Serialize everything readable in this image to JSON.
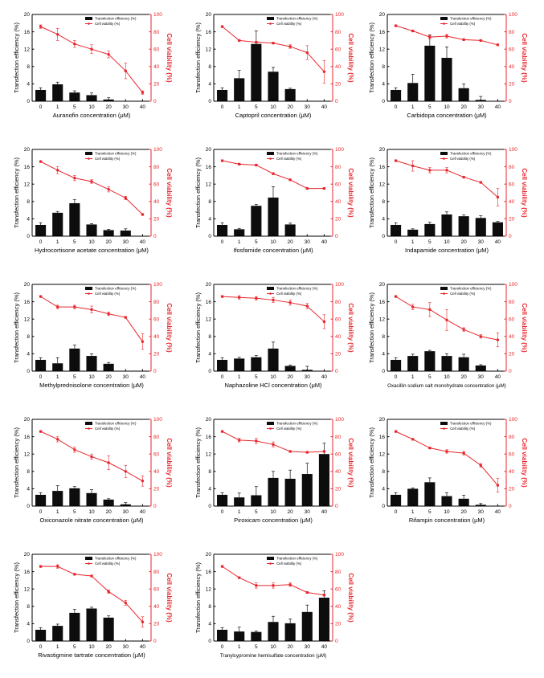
{
  "chart_data": {
    "type": "bar+line",
    "shared": {
      "categories": [
        "0",
        "1",
        "5",
        "10",
        "20",
        "30",
        "40"
      ],
      "left_ylabel": "Transfection efficiency (%)",
      "right_ylabel": "Cell viability (%)",
      "left_ylim": [
        0,
        20
      ],
      "left_ticks": [
        "0",
        "4",
        "8",
        "12",
        "16",
        "20"
      ],
      "right_ylim": [
        0,
        100
      ],
      "right_ticks": [
        "0",
        "20",
        "40",
        "60",
        "80",
        "100"
      ],
      "legend_bar": "Transfection efficiency (%)",
      "legend_line": "Cell viability (%)",
      "bar_color": "#0d0d0d",
      "line_color": "#e8262c"
    },
    "panels": [
      {
        "xlabel": "Auranofin concentration (μM)",
        "bars": [
          2.6,
          3.9,
          2.0,
          1.4,
          0.4,
          0,
          0
        ],
        "bar_err": [
          0.5,
          0.5,
          0.4,
          0.5,
          0.4,
          0,
          0
        ],
        "viability": [
          86,
          77,
          66,
          60,
          54,
          35,
          10
        ],
        "viability_err": [
          2,
          7,
          4,
          5,
          4,
          9,
          2
        ]
      },
      {
        "xlabel": "Captopril concentration (μM)",
        "bars": [
          2.6,
          5.3,
          13.2,
          6.8,
          2.8,
          0,
          0
        ],
        "bar_err": [
          0.5,
          1.8,
          3.0,
          1.0,
          0.2,
          0,
          0
        ],
        "viability": [
          86,
          70,
          68,
          67,
          63,
          56,
          34
        ],
        "viability_err": [
          1,
          1,
          1,
          1,
          2,
          8,
          13
        ]
      },
      {
        "xlabel": "Carbidopa concentration (μM)",
        "bars": [
          2.6,
          4.2,
          12.8,
          10.0,
          3.0,
          0.3,
          0
        ],
        "bar_err": [
          0.5,
          2.0,
          2.5,
          2.5,
          1.0,
          0.8,
          0
        ],
        "viability": [
          87,
          81,
          74,
          75,
          71,
          70,
          65
        ],
        "viability_err": [
          1,
          1,
          2,
          2,
          1,
          1,
          1
        ]
      },
      {
        "xlabel": "Hydrocortisone acetate concentration (μM)",
        "bars": [
          2.6,
          5.4,
          7.6,
          2.7,
          1.4,
          1.3,
          0
        ],
        "bar_err": [
          0.5,
          0.3,
          0.8,
          0.2,
          0.2,
          0.4,
          0
        ],
        "viability": [
          86,
          76,
          67,
          63,
          54,
          44,
          25
        ],
        "viability_err": [
          1,
          4,
          3,
          2,
          3,
          2,
          1
        ]
      },
      {
        "xlabel": "Ifosfamide concentration (μM)",
        "bars": [
          2.6,
          1.6,
          7.0,
          8.9,
          2.7,
          0,
          0
        ],
        "bar_err": [
          0.5,
          0.2,
          0.3,
          2.5,
          0.3,
          0,
          0
        ],
        "viability": [
          87,
          83,
          82,
          72,
          65,
          55,
          55
        ],
        "viability_err": [
          1,
          1,
          1,
          1,
          1,
          1,
          1
        ]
      },
      {
        "xlabel": "Indapamide concentration (μM)",
        "bars": [
          2.6,
          1.5,
          2.8,
          5.0,
          4.6,
          4.2,
          3.2
        ],
        "bar_err": [
          0.5,
          0.2,
          0.4,
          0.6,
          0.3,
          0.5,
          0.2
        ],
        "viability": [
          87,
          81,
          76,
          76,
          68,
          62,
          45
        ],
        "viability_err": [
          1,
          6,
          3,
          3,
          1,
          1,
          10
        ]
      },
      {
        "xlabel": "Methylprednisolone concentration (μM)",
        "bars": [
          2.6,
          1.8,
          5.2,
          3.5,
          1.7,
          0,
          0
        ],
        "bar_err": [
          0.5,
          1.3,
          0.8,
          0.5,
          0.3,
          0,
          0
        ],
        "viability": [
          86,
          74,
          74,
          71,
          66,
          62,
          34
        ],
        "viability_err": [
          1,
          2,
          2,
          4,
          2,
          1,
          9
        ]
      },
      {
        "xlabel": "Naphazoline HCl concentration (μM)",
        "bars": [
          2.6,
          2.9,
          3.2,
          5.2,
          1.2,
          0.3,
          0
        ],
        "bar_err": [
          0.5,
          0.3,
          0.4,
          1.5,
          0.2,
          0.8,
          0
        ],
        "viability": [
          86,
          85,
          84,
          82,
          79,
          75,
          57
        ],
        "viability_err": [
          1,
          2,
          2,
          3,
          3,
          3,
          8
        ]
      },
      {
        "xlabel": "Oxacillin sodium salt monohydrate concentration (μM)",
        "bars": [
          2.6,
          3.5,
          4.6,
          3.5,
          3.2,
          1.3,
          0
        ],
        "bar_err": [
          0.5,
          0.4,
          0.2,
          0.5,
          0.7,
          0.2,
          0
        ],
        "viability": [
          86,
          74,
          71,
          59,
          48,
          40,
          36
        ],
        "viability_err": [
          1,
          3,
          8,
          12,
          2,
          2,
          8
        ]
      },
      {
        "xlabel": "Oxiconazole nitrate concentration (μM)",
        "bars": [
          2.6,
          3.5,
          4.1,
          3.0,
          1.5,
          0.4,
          0
        ],
        "bar_err": [
          0.5,
          1.2,
          0.4,
          0.8,
          0.2,
          0.4,
          0
        ],
        "viability": [
          86,
          77,
          65,
          57,
          50,
          40,
          29
        ],
        "viability_err": [
          1,
          3,
          3,
          3,
          8,
          7,
          6
        ]
      },
      {
        "xlabel": "Piroxicam concentration (μM)",
        "bars": [
          2.6,
          2.0,
          2.5,
          6.5,
          6.3,
          7.4,
          12.0
        ],
        "bar_err": [
          0.5,
          1.0,
          2.0,
          1.5,
          2.0,
          2.5,
          2.5
        ],
        "viability": [
          86,
          76,
          75,
          71,
          63,
          62,
          63
        ],
        "viability_err": [
          1,
          2,
          3,
          3,
          1,
          1,
          1
        ]
      },
      {
        "xlabel": "Rifampin concentration (μM)",
        "bars": [
          2.6,
          4.0,
          5.5,
          2.3,
          1.7,
          0.3,
          0
        ],
        "bar_err": [
          0.5,
          0.2,
          1.0,
          0.8,
          0.8,
          0.3,
          0
        ],
        "viability": [
          86,
          77,
          67,
          63,
          61,
          47,
          24
        ],
        "viability_err": [
          1,
          1,
          1,
          2,
          2,
          2,
          8
        ]
      },
      {
        "xlabel": "Rivastigmine tartrate concentration (μM)",
        "bars": [
          2.6,
          3.5,
          6.5,
          7.5,
          5.4,
          0,
          0
        ],
        "bar_err": [
          0.5,
          0.4,
          0.8,
          0.3,
          0.4,
          0,
          0
        ],
        "viability": [
          86,
          86,
          77,
          75,
          57,
          44,
          22
        ],
        "viability_err": [
          1,
          2,
          1,
          1,
          2,
          3,
          6
        ]
      },
      {
        "xlabel": "Tranylcypromine hemisulfate concentration (μM)",
        "bars": [
          2.6,
          2.2,
          2.1,
          4.4,
          4.1,
          6.7,
          10.0
        ],
        "bar_err": [
          0.5,
          1.0,
          0.2,
          1.3,
          1.0,
          1.6,
          1.6
        ],
        "viability": [
          86,
          73,
          64,
          64,
          65,
          56,
          53
        ],
        "viability_err": [
          1,
          1,
          3,
          3,
          2,
          1,
          1
        ]
      }
    ]
  }
}
